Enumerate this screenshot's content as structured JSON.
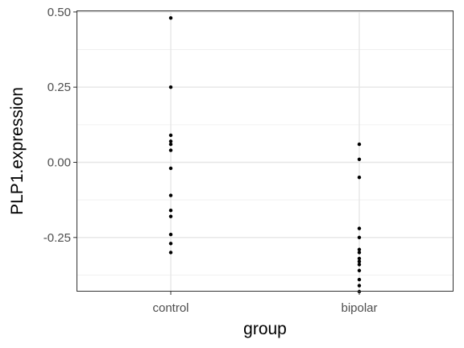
{
  "chart_data": {
    "type": "scatter",
    "title": "",
    "xlabel": "group",
    "ylabel": "PLP1.expression",
    "categories": [
      "control",
      "bipolar"
    ],
    "ylim": [
      -0.43,
      0.505
    ],
    "y_ticks": [
      0.5,
      0.25,
      0.0,
      -0.25
    ],
    "y_tick_labels": [
      "0.50",
      "0.25",
      "0.00",
      "-0.25"
    ],
    "grid": true,
    "series": [
      {
        "category": "control",
        "values": [
          0.48,
          0.25,
          0.09,
          0.07,
          0.06,
          0.04,
          -0.02,
          -0.11,
          -0.16,
          -0.18,
          -0.24,
          -0.27,
          -0.3
        ]
      },
      {
        "category": "bipolar",
        "values": [
          0.06,
          0.01,
          -0.05,
          -0.22,
          -0.25,
          -0.29,
          -0.3,
          -0.32,
          -0.33,
          -0.34,
          -0.36,
          -0.39,
          -0.41,
          -0.43
        ]
      }
    ]
  }
}
